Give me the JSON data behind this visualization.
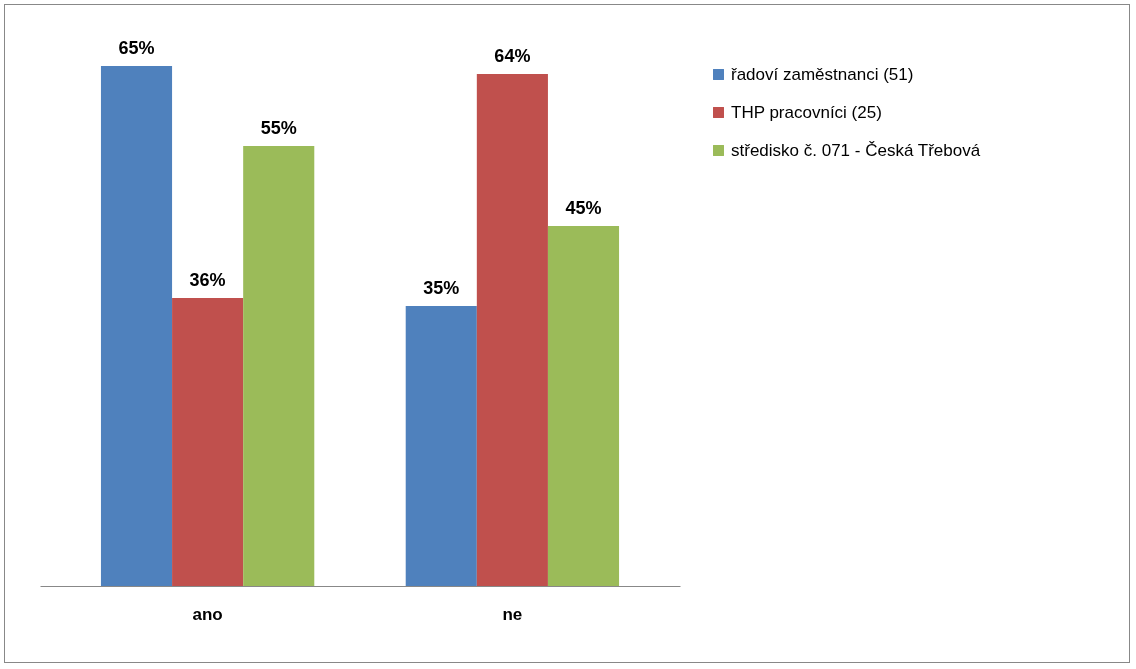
{
  "chart_data": {
    "type": "bar",
    "categories": [
      "ano",
      "ne"
    ],
    "series": [
      {
        "name": "řadoví zaměstnanci (51)",
        "color": "#4f81bd",
        "values": [
          65,
          35
        ],
        "value_labels": [
          "65%",
          "35%"
        ]
      },
      {
        "name": "THP pracovníci (25)",
        "color": "#c0504d",
        "values": [
          36,
          64
        ],
        "value_labels": [
          "36%",
          "64%"
        ]
      },
      {
        "name": "středisko č. 071 - Česká Třebová",
        "color": "#9bbb59",
        "values": [
          55,
          45
        ],
        "value_labels": [
          "55%",
          "45%"
        ]
      }
    ],
    "legend": "right",
    "tick_labels": "x"
  }
}
